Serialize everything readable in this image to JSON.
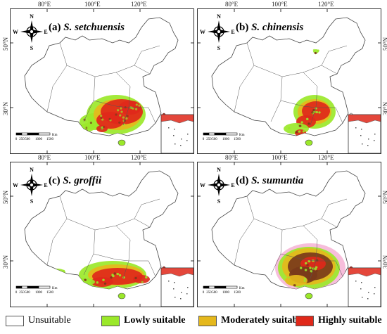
{
  "panels": [
    {
      "label": "(a) ",
      "species": "S. setchuensis",
      "pattern": "a"
    },
    {
      "label": "(b) ",
      "species": "S. chinensis",
      "pattern": "b"
    },
    {
      "label": "(c) ",
      "species": "S. groffii",
      "pattern": "c"
    },
    {
      "label": "(d) ",
      "species": "S. sumuntia",
      "pattern": "d"
    }
  ],
  "ticks": {
    "lon": [
      "80°E",
      "100°E",
      "120°E"
    ],
    "lat": [
      "50°N",
      "30°N"
    ]
  },
  "compass": {
    "n": "N",
    "s": "S",
    "e": "E",
    "w": "W"
  },
  "scalebar": {
    "values": [
      "0",
      "250",
      "500",
      "1000",
      "1500"
    ],
    "unit": "Km"
  },
  "legend": [
    {
      "label": "Unsuitable",
      "color": "#ffffff"
    },
    {
      "label": "Lowly suitable",
      "color": "#9be82a"
    },
    {
      "label": "Moderately suitable",
      "color": "#e5b81c"
    },
    {
      "label": "Highly suitable",
      "color": "#e0281a"
    }
  ],
  "colors": {
    "low": "#9be82a",
    "moderate": "#e5b81c",
    "high": "#e0281a",
    "dark": "#7a3a1a",
    "pink": "#f6b8d8",
    "border": "#333333"
  }
}
